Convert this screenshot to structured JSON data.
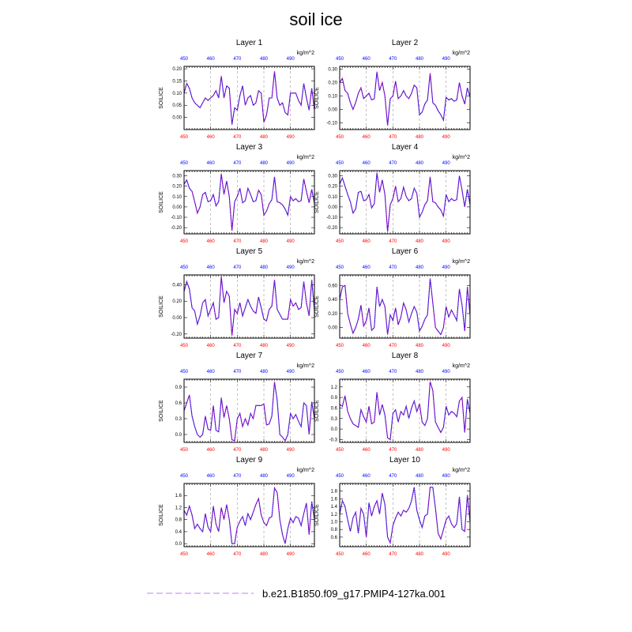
{
  "title": "soil ice",
  "colors": {
    "line": "#2200cc",
    "dots": "#ff33cc",
    "top_ticks": "#0000ff",
    "bottom_ticks": "#ff0000",
    "grid": "#999999",
    "legend_line": "#cc99ff"
  },
  "legend": {
    "label": "b.e21.B1850.f09_g17.PMIP4-127ka.001",
    "style": "dashed"
  },
  "chart_data": [
    {
      "type": "line",
      "title": "Layer 1",
      "ylabel": "SOILICE",
      "unit": "kg/m^2",
      "x_start": 450,
      "xlim": [
        450,
        499
      ],
      "xticks": [
        450,
        460,
        470,
        480,
        490
      ],
      "ylim": [
        -0.05,
        0.21
      ],
      "yticks": [
        "0.00",
        "0.05",
        "0.10",
        "0.15",
        "0.20"
      ],
      "ytick_values": [
        0,
        0.05,
        0.1,
        0.15,
        0.2
      ],
      "values": [
        0.1,
        0.14,
        0.12,
        0.08,
        0.06,
        0.05,
        0.04,
        0.06,
        0.08,
        0.07,
        0.08,
        0.09,
        0.11,
        0.08,
        0.17,
        0.08,
        0.13,
        0.12,
        -0.03,
        0.04,
        0.03,
        0.09,
        0.13,
        0.05,
        0.08,
        0.09,
        0.05,
        0.06,
        0.11,
        0.1,
        -0.02,
        0.01,
        0.08,
        0.08,
        0.19,
        0.08,
        0.05,
        0.06,
        0.02,
        0.01,
        0.1,
        0.1,
        0.1,
        0.07,
        0.05,
        0.14,
        0.08,
        0.03,
        0.12,
        0.03
      ]
    },
    {
      "type": "line",
      "title": "Layer 2",
      "ylabel": "SOILICE",
      "unit": "kg/m^2",
      "x_start": 450,
      "xlim": [
        450,
        499
      ],
      "xticks": [
        450,
        460,
        470,
        480,
        490
      ],
      "ylim": [
        -0.15,
        0.32
      ],
      "yticks": [
        "-0.10",
        "0.00",
        "0.10",
        "0.20",
        "0.30"
      ],
      "ytick_values": [
        -0.1,
        0,
        0.1,
        0.2,
        0.3
      ],
      "values": [
        0.2,
        0.23,
        0.14,
        0.12,
        0.05,
        0.0,
        0.05,
        0.12,
        0.16,
        0.08,
        0.1,
        0.12,
        0.07,
        0.08,
        0.28,
        0.14,
        0.2,
        0.1,
        -0.12,
        0.08,
        0.1,
        0.21,
        0.08,
        0.1,
        0.14,
        0.1,
        0.08,
        0.12,
        0.18,
        0.16,
        -0.04,
        -0.02,
        0.04,
        0.07,
        0.27,
        0.05,
        0.03,
        -0.01,
        -0.04,
        -0.08,
        0.09,
        0.07,
        0.08,
        0.06,
        0.07,
        0.2,
        0.1,
        0.04,
        0.16,
        0.09
      ]
    },
    {
      "type": "line",
      "title": "Layer 3",
      "ylabel": "SOILICE",
      "unit": "kg/m^2",
      "x_start": 450,
      "xlim": [
        450,
        499
      ],
      "xticks": [
        450,
        460,
        470,
        480,
        490
      ],
      "ylim": [
        -0.26,
        0.35
      ],
      "yticks": [
        "-0.20",
        "-0.10",
        "0.00",
        "0.10",
        "0.20",
        "0.30"
      ],
      "ytick_values": [
        -0.2,
        -0.1,
        0,
        0.1,
        0.2,
        0.3
      ],
      "values": [
        0.22,
        0.26,
        0.18,
        0.15,
        0.05,
        -0.06,
        0.0,
        0.12,
        0.14,
        0.05,
        0.06,
        0.12,
        0.01,
        0.05,
        0.32,
        0.12,
        0.25,
        0.1,
        -0.23,
        0.05,
        0.1,
        0.18,
        0.04,
        0.06,
        0.18,
        0.12,
        0.05,
        0.06,
        0.16,
        0.12,
        -0.08,
        -0.04,
        0.03,
        0.07,
        0.29,
        0.05,
        0.04,
        0.02,
        -0.02,
        -0.08,
        0.1,
        0.06,
        0.08,
        0.05,
        0.06,
        0.27,
        0.15,
        0.04,
        0.17,
        0.03
      ]
    },
    {
      "type": "line",
      "title": "Layer 4",
      "ylabel": "SOILICE",
      "unit": "kg/m^2",
      "x_start": 450,
      "xlim": [
        450,
        499
      ],
      "xticks": [
        450,
        460,
        470,
        480,
        490
      ],
      "ylim": [
        -0.26,
        0.35
      ],
      "yticks": [
        "-0.20",
        "-0.10",
        "0.00",
        "0.10",
        "0.20",
        "0.30"
      ],
      "ytick_values": [
        -0.2,
        -0.1,
        0,
        0.1,
        0.2,
        0.3
      ],
      "values": [
        0.22,
        0.28,
        0.2,
        0.12,
        0.05,
        -0.06,
        -0.02,
        0.14,
        0.15,
        0.06,
        0.07,
        0.12,
        -0.01,
        0.03,
        0.33,
        0.14,
        0.26,
        0.12,
        -0.24,
        0.02,
        0.08,
        0.2,
        0.05,
        0.08,
        0.19,
        0.1,
        0.06,
        0.08,
        0.18,
        0.13,
        -0.1,
        -0.05,
        0.02,
        0.06,
        0.29,
        0.05,
        0.04,
        0.0,
        -0.03,
        -0.09,
        0.12,
        0.05,
        0.08,
        0.06,
        0.07,
        0.3,
        0.16,
        0.0,
        0.17,
        0.02
      ]
    },
    {
      "type": "line",
      "title": "Layer 5",
      "ylabel": "SOILICE",
      "unit": "kg/m^2",
      "x_start": 450,
      "xlim": [
        450,
        499
      ],
      "xticks": [
        450,
        460,
        470,
        480,
        490
      ],
      "ylim": [
        -0.25,
        0.52
      ],
      "yticks": [
        "-0.20",
        "0.00",
        "0.20",
        "0.40"
      ],
      "ytick_values": [
        -0.2,
        0,
        0.2,
        0.4
      ],
      "values": [
        0.32,
        0.44,
        0.35,
        0.12,
        0.08,
        -0.08,
        0.02,
        0.18,
        0.22,
        0.02,
        0.1,
        0.18,
        -0.02,
        0.0,
        0.5,
        0.18,
        0.32,
        0.26,
        -0.22,
        0.1,
        0.05,
        0.18,
        0.02,
        0.12,
        0.22,
        0.14,
        0.08,
        0.05,
        0.25,
        0.12,
        -0.02,
        -0.04,
        0.1,
        0.14,
        0.46,
        0.1,
        0.04,
        -0.02,
        -0.02,
        -0.02,
        0.22,
        0.14,
        0.18,
        0.1,
        0.12,
        0.44,
        0.18,
        0.02,
        0.46,
        0.08
      ]
    },
    {
      "type": "line",
      "title": "Layer 6",
      "ylabel": "SOILICE",
      "unit": "kg/m^2",
      "x_start": 450,
      "xlim": [
        450,
        499
      ],
      "xticks": [
        450,
        460,
        470,
        480,
        490
      ],
      "ylim": [
        -0.15,
        0.75
      ],
      "yticks": [
        "0.00",
        "0.20",
        "0.40",
        "0.60"
      ],
      "ytick_values": [
        0,
        0.2,
        0.4,
        0.6
      ],
      "values": [
        0.4,
        0.58,
        0.6,
        0.2,
        0.05,
        -0.08,
        0.0,
        0.12,
        0.32,
        0.02,
        0.1,
        0.28,
        -0.04,
        0.0,
        0.58,
        0.3,
        0.4,
        0.3,
        -0.1,
        0.18,
        0.1,
        0.28,
        0.04,
        0.15,
        0.35,
        0.25,
        0.08,
        0.2,
        0.3,
        0.22,
        -0.05,
        0.02,
        0.12,
        0.18,
        0.7,
        0.35,
        0.0,
        -0.05,
        -0.1,
        0.0,
        0.3,
        0.15,
        0.25,
        0.18,
        0.1,
        0.55,
        0.32,
        -0.05,
        0.58,
        0.18
      ]
    },
    {
      "type": "line",
      "title": "Layer 7",
      "ylabel": "SOILICE",
      "unit": "kg/m^2",
      "x_start": 450,
      "xlim": [
        450,
        499
      ],
      "xticks": [
        450,
        460,
        470,
        480,
        490
      ],
      "ylim": [
        -0.15,
        1.05
      ],
      "yticks": [
        "0.0",
        "0.3",
        "0.6",
        "0.9"
      ],
      "ytick_values": [
        0,
        0.3,
        0.6,
        0.9
      ],
      "values": [
        0.45,
        0.6,
        0.75,
        0.35,
        0.15,
        0.0,
        -0.05,
        0.0,
        0.35,
        0.1,
        0.08,
        0.55,
        0.08,
        0.05,
        0.7,
        0.32,
        0.55,
        0.3,
        -0.1,
        -0.12,
        0.3,
        0.4,
        0.15,
        0.3,
        0.18,
        0.4,
        0.3,
        0.55,
        0.55,
        0.55,
        0.58,
        0.18,
        0.2,
        0.35,
        1.0,
        0.65,
        0.0,
        -0.05,
        -0.12,
        0.0,
        0.4,
        0.3,
        0.38,
        0.25,
        0.15,
        0.6,
        0.55,
        0.0,
        0.62,
        0.3
      ]
    },
    {
      "type": "line",
      "title": "Layer 8",
      "ylabel": "SOILICE",
      "unit": "kg/m^2",
      "x_start": 450,
      "xlim": [
        450,
        499
      ],
      "xticks": [
        450,
        460,
        470,
        480,
        490
      ],
      "ylim": [
        -0.38,
        1.42
      ],
      "yticks": [
        "-0.3",
        "0.0",
        "0.3",
        "0.6",
        "0.9",
        "1.2"
      ],
      "ytick_values": [
        -0.3,
        0,
        0.3,
        0.6,
        0.9,
        1.2
      ],
      "values": [
        0.7,
        0.65,
        0.95,
        0.5,
        0.3,
        0.15,
        0.1,
        0.05,
        0.55,
        0.35,
        0.2,
        0.65,
        0.15,
        0.2,
        1.05,
        0.4,
        0.7,
        0.4,
        -0.25,
        -0.3,
        0.45,
        0.55,
        0.2,
        0.5,
        0.4,
        0.65,
        0.3,
        0.6,
        0.8,
        0.5,
        0.72,
        0.2,
        0.1,
        0.3,
        1.35,
        1.1,
        0.2,
        0.05,
        -0.1,
        0.05,
        0.65,
        0.4,
        0.5,
        0.45,
        0.35,
        0.8,
        0.9,
        -0.1,
        0.85,
        0.45
      ]
    },
    {
      "type": "line",
      "title": "Layer 9",
      "ylabel": "SOILICE",
      "unit": "kg/m^2",
      "x_start": 450,
      "xlim": [
        450,
        499
      ],
      "xticks": [
        450,
        460,
        470,
        480,
        490
      ],
      "ylim": [
        -0.1,
        2.0
      ],
      "yticks": [
        "0.0",
        "0.4",
        "0.8",
        "1.2",
        "1.6"
      ],
      "ytick_values": [
        0,
        0.4,
        0.8,
        1.2,
        1.6
      ],
      "values": [
        1.1,
        0.95,
        1.25,
        0.95,
        0.5,
        0.65,
        0.5,
        0.4,
        1.0,
        0.55,
        0.4,
        1.25,
        0.65,
        0.4,
        1.2,
        0.8,
        1.3,
        0.8,
        0.0,
        0.0,
        0.55,
        0.75,
        0.9,
        0.6,
        1.0,
        0.8,
        1.05,
        1.3,
        1.5,
        0.95,
        0.7,
        0.6,
        0.85,
        0.9,
        1.85,
        1.7,
        0.8,
        0.3,
        0.0,
        0.5,
        0.85,
        0.7,
        0.9,
        0.85,
        0.6,
        1.0,
        1.35,
        0.3,
        1.4,
        0.8
      ]
    },
    {
      "type": "line",
      "title": "Layer 10",
      "ylabel": "SOILICE",
      "unit": "kg/m^2",
      "x_start": 450,
      "xlim": [
        450,
        499
      ],
      "xticks": [
        450,
        460,
        470,
        480,
        490
      ],
      "ylim": [
        0.35,
        2.0
      ],
      "yticks": [
        "0.6",
        "0.8",
        "1.0",
        "1.2",
        "1.4",
        "1.6",
        "1.8"
      ],
      "ytick_values": [
        0.6,
        0.8,
        1.0,
        1.2,
        1.4,
        1.6,
        1.8
      ],
      "values": [
        1.2,
        1.55,
        1.4,
        1.05,
        0.75,
        1.1,
        1.25,
        0.7,
        1.35,
        1.2,
        0.6,
        1.5,
        1.15,
        1.4,
        1.55,
        1.2,
        1.75,
        1.45,
        0.6,
        0.45,
        0.9,
        1.1,
        1.25,
        1.15,
        1.3,
        1.25,
        1.35,
        1.55,
        1.9,
        1.3,
        1.05,
        0.85,
        1.15,
        1.2,
        1.9,
        1.9,
        1.35,
        0.7,
        0.55,
        0.8,
        1.05,
        1.15,
        0.95,
        0.85,
        0.95,
        1.65,
        0.8,
        0.75,
        1.7,
        1.0
      ]
    }
  ]
}
